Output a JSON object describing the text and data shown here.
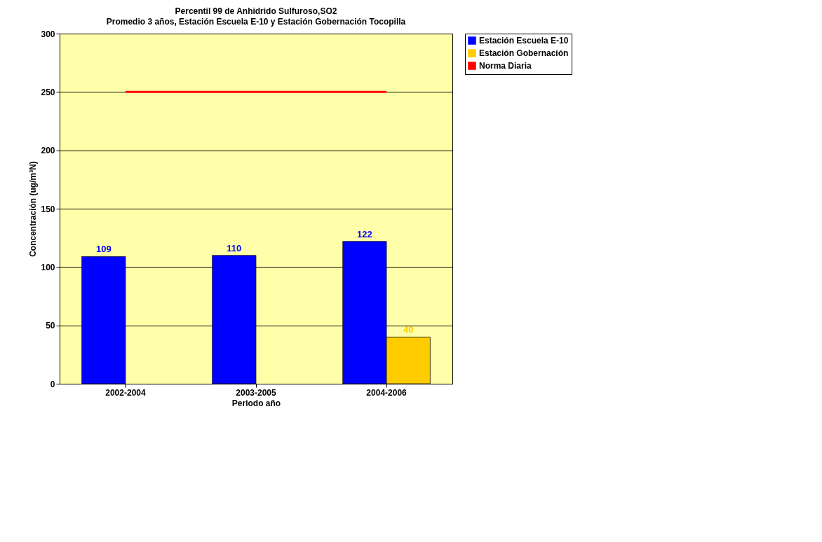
{
  "chart_data": {
    "type": "bar",
    "title": "Percentil 99 de Anhidrido Sulfuroso,SO2",
    "subtitle": "Promedio 3 años, Estación Escuela E-10 y Estación Gobernación Tocopilla",
    "xlabel": "Periodo año",
    "ylabel": "Concentración (ug/m³N)",
    "categories": [
      "2002-2004",
      "2003-2005",
      "2004-2006"
    ],
    "series": [
      {
        "name": "Estación Escuela E-10",
        "color": "#0000ff",
        "values": [
          109,
          110,
          122
        ],
        "value_labels": [
          "109",
          "110",
          "122"
        ]
      },
      {
        "name": "Estación Gobernación",
        "color": "#ffcc00",
        "values": [
          null,
          null,
          40
        ],
        "value_labels": [
          null,
          null,
          "40"
        ]
      },
      {
        "name": "Norma Diaria",
        "type": "line",
        "color": "#ff0000",
        "values": [
          250,
          250,
          250
        ]
      }
    ],
    "ylim": [
      0,
      300
    ],
    "yticks": [
      0,
      50,
      100,
      150,
      200,
      250,
      300
    ],
    "grid": "y",
    "legend": "right"
  }
}
